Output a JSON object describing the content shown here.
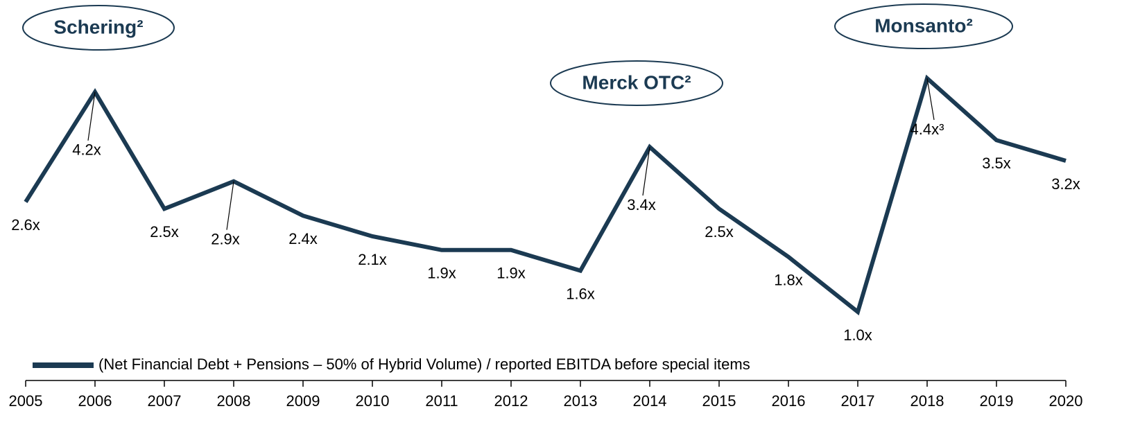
{
  "chart_data": {
    "type": "line",
    "categories": [
      "2005",
      "2006",
      "2007",
      "2008",
      "2009",
      "2010",
      "2011",
      "2012",
      "2013",
      "2014",
      "2015",
      "2016",
      "2017",
      "2018",
      "2019",
      "2020"
    ],
    "series": [
      {
        "name": "(Net Financial Debt + Pensions – 50% of Hybrid Volume) / reported EBITDA before special items",
        "color": "#1b3a52",
        "values": [
          2.6,
          4.2,
          2.5,
          2.9,
          2.4,
          2.1,
          1.9,
          1.9,
          1.6,
          3.4,
          2.5,
          1.8,
          1.0,
          4.4,
          3.5,
          3.2
        ],
        "value_labels": [
          "2.6x",
          "4.2x",
          "2.5x",
          "2.9x",
          "2.4x",
          "2.1x",
          "1.9x",
          "1.9x",
          "1.6x",
          "3.4x",
          "2.5x",
          "1.8x",
          "1.0x",
          "4.4x³",
          "3.5x",
          "3.2x"
        ]
      }
    ],
    "annotations": [
      {
        "text": "Schering²",
        "category": "2006"
      },
      {
        "text": "Merck OTC²",
        "category": "2014"
      },
      {
        "text": "Monsanto²",
        "category": "2018"
      }
    ],
    "legend": "bottom-left"
  }
}
